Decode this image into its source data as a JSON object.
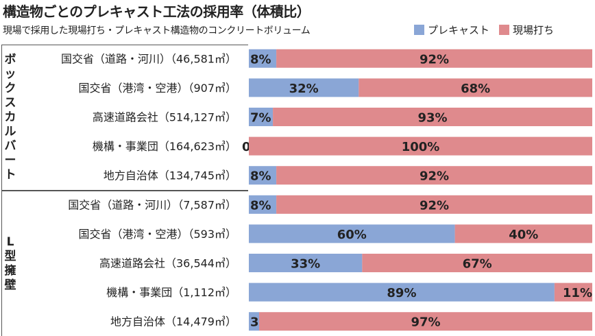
{
  "title": "構造物ごとのプレキャスト工法の採用率（体積比）",
  "subtitle": "現場で採用した現場打ち・プレキャスト構造物のコンクリートボリューム",
  "colors": {
    "precast": "#8aa6d6",
    "cast_in_place": "#df8a8d"
  },
  "chart_data": {
    "type": "bar",
    "orientation": "horizontal",
    "stacked": true,
    "xlim": [
      0,
      100
    ],
    "series": [
      {
        "name": "プレキャスト",
        "values": [
          8,
          32,
          7,
          0,
          8,
          8,
          60,
          33,
          89,
          3
        ]
      },
      {
        "name": "現場打ち",
        "values": [
          92,
          68,
          93,
          100,
          92,
          92,
          40,
          67,
          11,
          97
        ]
      }
    ],
    "categories": [
      "国交省（道路・河川）（46,581㎥）",
      "国交省（港湾・空港）（907㎥）",
      "高速道路会社（514,127㎥）",
      "機構・事業団（164,623㎥）",
      "地方自治体（134,745㎥）",
      "国交省（道路・河川）（7,587㎥）",
      "国交省（港湾・空港）（593㎥）",
      "高速道路会社（36,544㎥）",
      "機構・事業団（1,112㎥）",
      "地方自治体（14,479㎥）"
    ],
    "groups": [
      {
        "name": "ボックスカルバート",
        "start": 0,
        "end": 4
      },
      {
        "name": "L型擁壁",
        "start": 5,
        "end": 9
      }
    ],
    "value_suffix": "%"
  }
}
